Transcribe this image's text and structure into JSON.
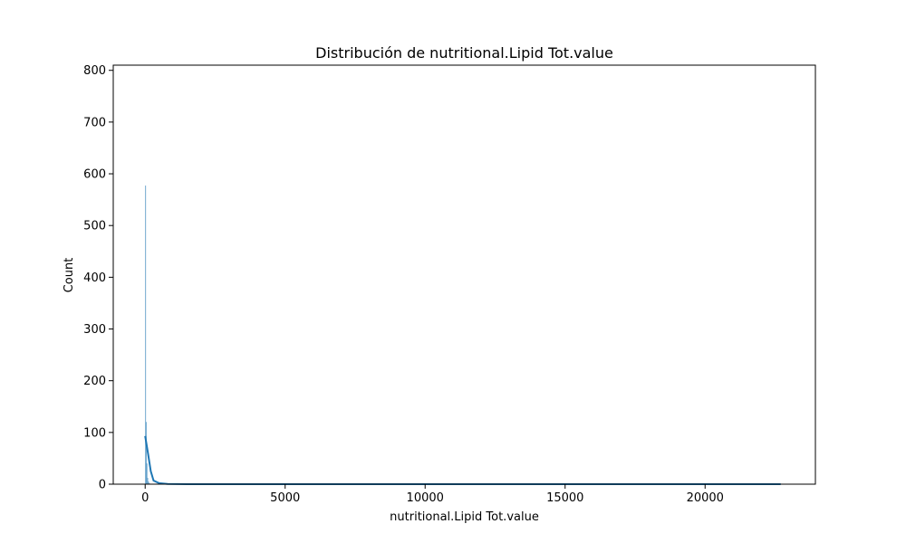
{
  "chart_data": {
    "type": "histogram",
    "title": "Distribución de nutritional.Lipid Tot.value",
    "xlabel": "nutritional.Lipid Tot.value",
    "ylabel": "Count",
    "xlim": [
      -1140,
      23940
    ],
    "ylim": [
      0,
      810
    ],
    "xticks": [
      0,
      5000,
      10000,
      15000,
      20000
    ],
    "yticks": [
      0,
      100,
      200,
      300,
      400,
      500,
      600,
      700,
      800
    ],
    "grid": false,
    "bar_color": "#1f77b4",
    "line_color": "#1f77b4",
    "histogram_bins": [
      {
        "x0": 0,
        "x1": 26,
        "count": 577
      },
      {
        "x0": 26,
        "x1": 52,
        "count": 120
      },
      {
        "x0": 52,
        "x1": 78,
        "count": 40
      },
      {
        "x0": 78,
        "x1": 104,
        "count": 12
      },
      {
        "x0": 104,
        "x1": 130,
        "count": 5
      },
      {
        "x0": 130,
        "x1": 160,
        "count": 2
      }
    ],
    "kde": {
      "x": [
        0,
        100,
        200,
        300,
        500,
        800,
        1500,
        3000,
        6000,
        10000,
        15000,
        20000,
        22700
      ],
      "y": [
        93,
        60,
        25,
        7,
        2,
        0.5,
        0.1,
        0,
        0,
        0,
        0,
        0,
        0
      ]
    }
  }
}
